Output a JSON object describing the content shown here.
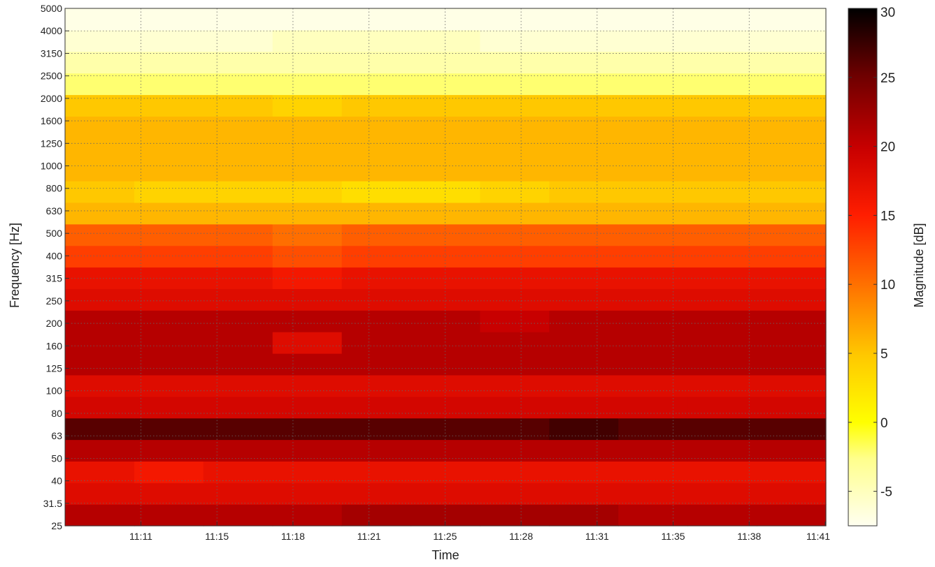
{
  "chart_data": {
    "type": "heatmap",
    "title": "",
    "xlabel": "Time",
    "ylabel": "Frequency [Hz]",
    "colorbar_label": "Magnitude [dB]",
    "colormap": "hot (inverted)",
    "grid": true,
    "x_ticks": [
      "11:11",
      "11:15",
      "11:18",
      "11:21",
      "11:25",
      "11:28",
      "11:31",
      "11:35",
      "11:38",
      "11:41"
    ],
    "y_ticks": [
      "25",
      "31.5",
      "40",
      "50",
      "63",
      "80",
      "100",
      "125",
      "160",
      "200",
      "250",
      "315",
      "400",
      "500",
      "630",
      "800",
      "1000",
      "1250",
      "1600",
      "2000",
      "2500",
      "3150",
      "4000",
      "5000"
    ],
    "colorbar_ticks": [
      "30",
      "25",
      "20",
      "15",
      "10",
      "5",
      "0",
      "-5"
    ],
    "colorbar_range": [
      -7.5,
      30
    ],
    "x": [
      "11:07",
      "11:11",
      "11:15",
      "11:18",
      "11:21",
      "11:25",
      "11:28",
      "11:31",
      "11:35",
      "11:38",
      "11:41"
    ],
    "y": [
      "25",
      "31.5",
      "40",
      "50",
      "63",
      "80",
      "100",
      "125",
      "160",
      "200",
      "250",
      "315",
      "400",
      "500",
      "630",
      "800",
      "1000",
      "1250",
      "1600",
      "2000",
      "2500",
      "3150",
      "4000",
      "5000"
    ],
    "z": [
      [
        21,
        21,
        21,
        21,
        22,
        22,
        22,
        22,
        21,
        21,
        21
      ],
      [
        18,
        18,
        18,
        18,
        18,
        18,
        18,
        18,
        18,
        18,
        18
      ],
      [
        17,
        16,
        17,
        17,
        17,
        17,
        17,
        17,
        17,
        17,
        17
      ],
      [
        21,
        21,
        21,
        21,
        21,
        21,
        21,
        21,
        21,
        21,
        21
      ],
      [
        26,
        26,
        26,
        26,
        26,
        26,
        26,
        27,
        26,
        26,
        26
      ],
      [
        19,
        19,
        19,
        19,
        19,
        19,
        19,
        19,
        19,
        19,
        19
      ],
      [
        18,
        18,
        18,
        18,
        18,
        18,
        18,
        18,
        18,
        18,
        18
      ],
      [
        21,
        21,
        21,
        21,
        21,
        21,
        21,
        21,
        21,
        21,
        21
      ],
      [
        21,
        21,
        21,
        18,
        21,
        21,
        21,
        21,
        21,
        21,
        21
      ],
      [
        21,
        21,
        21,
        21,
        21,
        21,
        20,
        21,
        21,
        21,
        21
      ],
      [
        18,
        18,
        18,
        18,
        18,
        18,
        18,
        18,
        18,
        18,
        18
      ],
      [
        17,
        17,
        17,
        16,
        17,
        17,
        17,
        17,
        17,
        17,
        17
      ],
      [
        13,
        13,
        13,
        12,
        13,
        13,
        13,
        13,
        13,
        13,
        13
      ],
      [
        11,
        11,
        11,
        10,
        11,
        11,
        11,
        11,
        11,
        11,
        11
      ],
      [
        6,
        6,
        6,
        6,
        6,
        6,
        6,
        6,
        6,
        6,
        6
      ],
      [
        5,
        4,
        4,
        4,
        3,
        3,
        4,
        5,
        5,
        5,
        5
      ],
      [
        6,
        6,
        6,
        6,
        6,
        6,
        6,
        6,
        6,
        6,
        6
      ],
      [
        6,
        6,
        6,
        6,
        6,
        6,
        6,
        6,
        6,
        6,
        6
      ],
      [
        6,
        6,
        6,
        6,
        6,
        6,
        6,
        6,
        6,
        6,
        6
      ],
      [
        5,
        5,
        5,
        4,
        5,
        5,
        5,
        5,
        5,
        5,
        5
      ],
      [
        -2,
        -2,
        -2,
        -2,
        -2,
        -2,
        -2,
        -2,
        -2,
        -2,
        -2
      ],
      [
        -4,
        -4,
        -4,
        -4,
        -4,
        -4,
        -4,
        -4,
        -4,
        -4,
        -4
      ],
      [
        -6,
        -6,
        -6,
        -5,
        -5,
        -5,
        -6,
        -6,
        -6,
        -6,
        -6
      ],
      [
        -7,
        -7,
        -7,
        -7,
        -7,
        -7,
        -7,
        -7,
        -7,
        -7,
        -7
      ]
    ]
  }
}
